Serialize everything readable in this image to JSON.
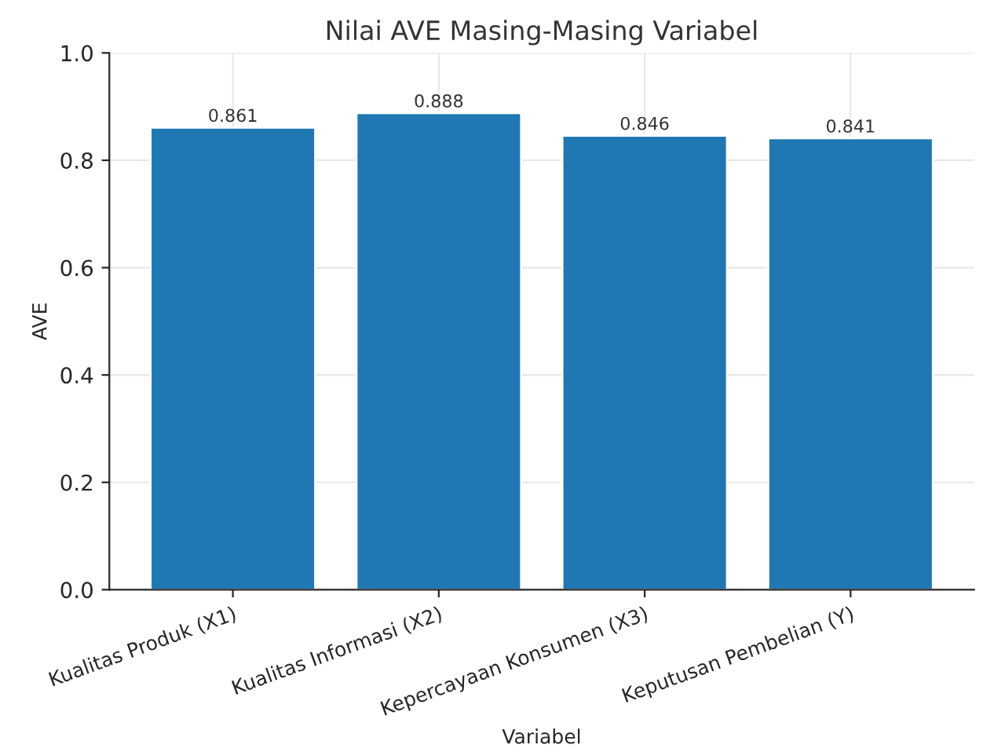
{
  "chart_data": {
    "type": "bar",
    "title": "Nilai AVE Masing-Masing Variabel",
    "xlabel": "Variabel",
    "ylabel": "AVE",
    "categories": [
      "Kualitas Produk (X1)",
      "Kualitas Informasi (X2)",
      "Kepercayaan Konsumen (X3)",
      "Keputusan Pembelian (Y)"
    ],
    "values": [
      0.861,
      0.888,
      0.846,
      0.841
    ],
    "color": "#1f77b4",
    "data_labels": true,
    "ylim": [
      0,
      1.0
    ],
    "yticks": [
      {
        "value": 0,
        "label": "0.0"
      },
      {
        "value": 0.2,
        "label": "0.2"
      },
      {
        "value": 0.4,
        "label": "0.4"
      },
      {
        "value": 0.6,
        "label": "0.6"
      },
      {
        "value": 0.8,
        "label": "0.8"
      },
      {
        "value": 1.0,
        "label": "1.0"
      }
    ],
    "grid": true
  }
}
